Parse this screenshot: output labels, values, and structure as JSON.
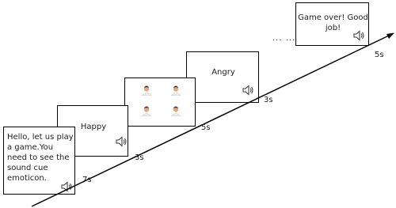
{
  "steps": [
    {
      "text": "Hello, let us play  a game.You need to see the sound cue emoticon.",
      "duration": "7s"
    },
    {
      "text": "Happy",
      "duration": "3s"
    },
    {
      "duration": "5s"
    },
    {
      "text": "Angry",
      "duration": "3s"
    },
    {
      "text": "Game over! Good job!",
      "duration": "5s"
    }
  ],
  "ellipsis": "... ..."
}
